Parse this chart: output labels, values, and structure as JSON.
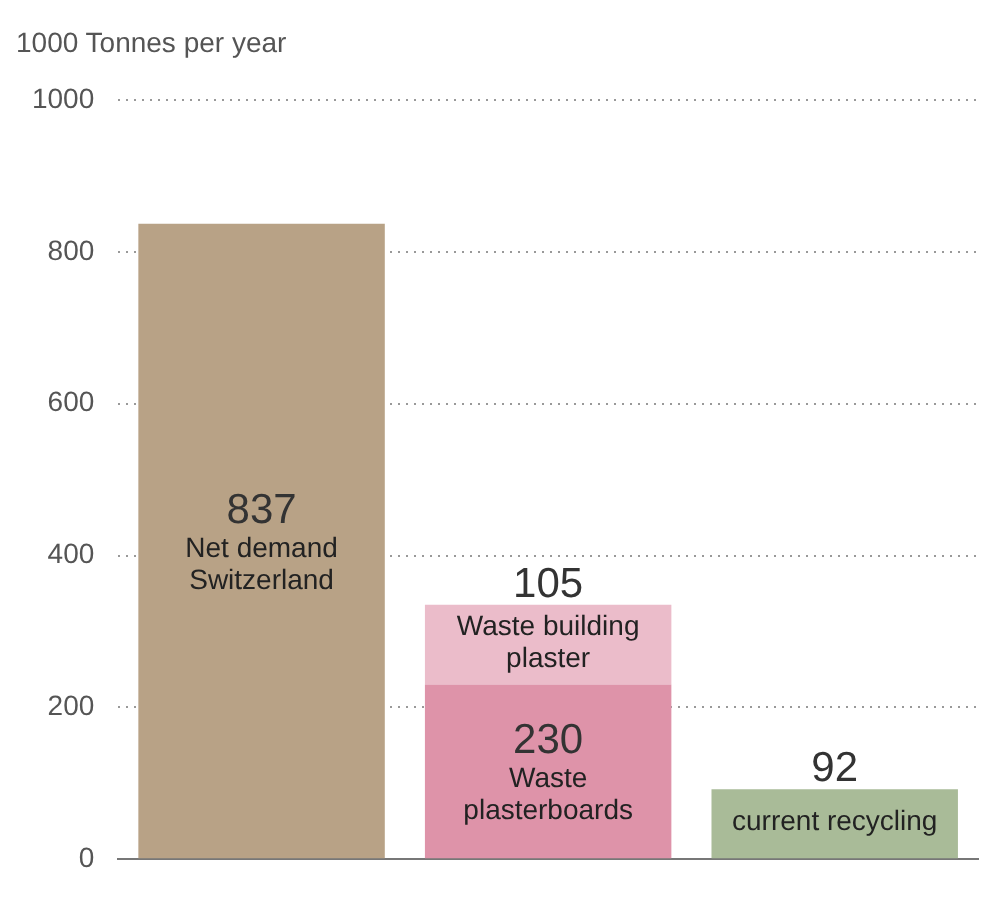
{
  "chart_data": {
    "type": "bar",
    "ylabel": "1000 Tonnes per year",
    "categories": [
      null,
      null,
      null
    ],
    "stacked": true,
    "data_labels": true,
    "legend": false,
    "grid": "y",
    "ylim": [
      0,
      1000
    ],
    "yticks": [
      0,
      200,
      400,
      600,
      800,
      1000
    ],
    "series": [
      {
        "name": "Net demand Switzerland",
        "color": "#b8a286",
        "values": [
          837,
          null,
          null
        ]
      },
      {
        "name": "Waste plasterboards",
        "color": "#de93a9",
        "values": [
          null,
          230,
          null
        ]
      },
      {
        "name": "Waste building plaster",
        "color": "#ebbcca",
        "values": [
          null,
          105,
          null
        ]
      },
      {
        "name": "current recycling",
        "color": "#a9bb98",
        "values": [
          null,
          null,
          92
        ]
      }
    ]
  }
}
